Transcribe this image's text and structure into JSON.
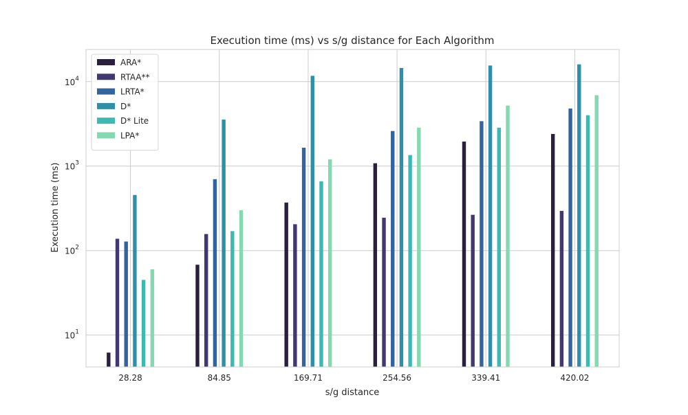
{
  "chart_data": {
    "type": "bar",
    "title": "Execution time (ms) vs s/g distance for Each Algorithm",
    "xlabel": "s/g distance",
    "ylabel": "Execution time (ms)",
    "yscale": "log",
    "ylim": [
      4.2,
      24000
    ],
    "yticks": [
      10,
      100,
      1000,
      10000
    ],
    "categories": [
      "28.28",
      "84.85",
      "169.71",
      "254.56",
      "339.41",
      "420.02"
    ],
    "series": [
      {
        "name": "ARA*",
        "color": "#2a1f3c",
        "values": [
          6.2,
          68,
          370,
          1080,
          1950,
          2400
        ]
      },
      {
        "name": "RTAA**",
        "color": "#40386f",
        "values": [
          138,
          157,
          205,
          245,
          265,
          295
        ]
      },
      {
        "name": "LRTA*",
        "color": "#33649e",
        "values": [
          128,
          700,
          1650,
          2600,
          3400,
          4800
        ]
      },
      {
        "name": "D*",
        "color": "#2f8ea8",
        "values": [
          455,
          3550,
          11700,
          14500,
          15500,
          16000
        ]
      },
      {
        "name": "D* Lite",
        "color": "#3db9b2",
        "values": [
          45,
          170,
          660,
          1350,
          2850,
          4000
        ]
      },
      {
        "name": "LPA*",
        "color": "#85d9b0",
        "values": [
          60,
          300,
          1200,
          2850,
          5200,
          6900
        ]
      }
    ],
    "grid": true,
    "legend": "top-left"
  }
}
